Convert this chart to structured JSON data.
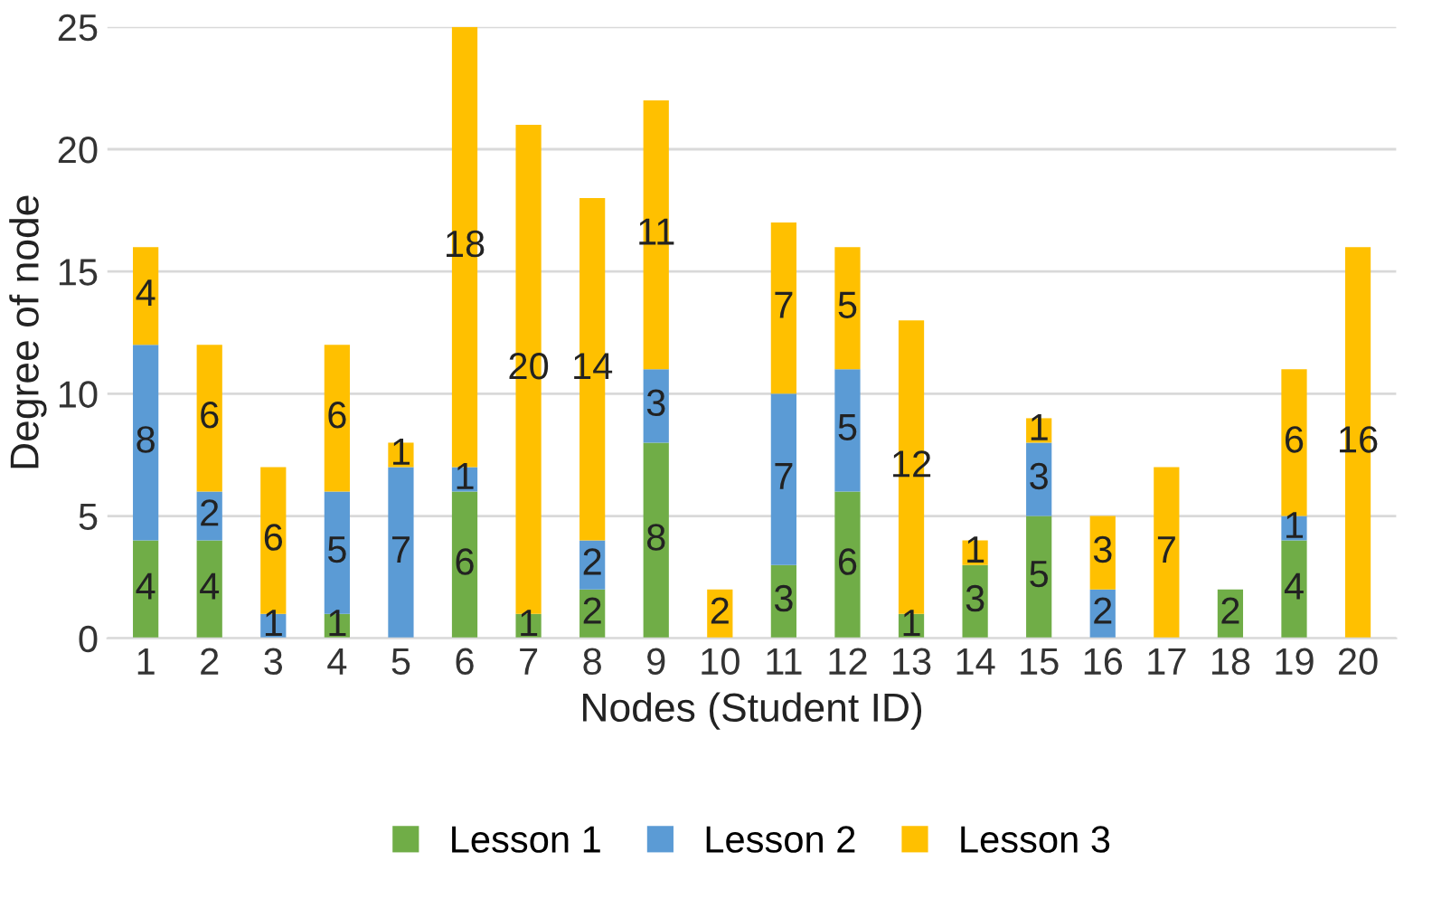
{
  "chart_data": {
    "type": "bar",
    "stacked": true,
    "xlabel": "Nodes (Student ID)",
    "ylabel": "Degree of node",
    "categories": [
      "1",
      "2",
      "3",
      "4",
      "5",
      "6",
      "7",
      "8",
      "9",
      "10",
      "11",
      "12",
      "13",
      "14",
      "15",
      "16",
      "17",
      "18",
      "19",
      "20"
    ],
    "series": [
      {
        "name": "Lesson 1",
        "color": "#70ad47",
        "values": [
          4,
          4,
          0,
          1,
          0,
          6,
          1,
          2,
          8,
          0,
          3,
          6,
          1,
          3,
          5,
          0,
          0,
          2,
          4,
          0
        ],
        "value_labels": [
          "4",
          "4",
          null,
          "1",
          null,
          "6",
          "1",
          "2",
          "8",
          null,
          "3",
          "6",
          "1",
          "3",
          "5",
          null,
          null,
          "2",
          "4",
          null
        ]
      },
      {
        "name": "Lesson 2",
        "color": "#5b9bd5",
        "values": [
          8,
          2,
          1,
          5,
          7,
          1,
          0,
          2,
          3,
          0,
          7,
          5,
          0,
          0,
          3,
          2,
          0,
          0,
          1,
          0
        ],
        "value_labels": [
          "8",
          "2",
          "1",
          "5",
          "7",
          "1",
          null,
          "2",
          "3",
          null,
          "7",
          "5",
          null,
          null,
          "3",
          "2",
          null,
          null,
          "1",
          null
        ]
      },
      {
        "name": "Lesson 3",
        "color": "#ffc000",
        "values": [
          4,
          6,
          6,
          6,
          1,
          18,
          20,
          14,
          11,
          2,
          7,
          5,
          12,
          1,
          1,
          3,
          7,
          0,
          6,
          16
        ],
        "value_labels": [
          "4",
          "6",
          "6",
          "6",
          "1",
          "18",
          "20",
          "14",
          "11",
          "2",
          "7",
          "5",
          "12",
          "1",
          "1",
          "3",
          "7",
          null,
          "6",
          "16"
        ]
      }
    ],
    "ylim": [
      0,
      25
    ],
    "yticks": [
      0,
      5,
      10,
      15,
      20,
      25
    ],
    "grid": "y",
    "legend": "bottom"
  }
}
